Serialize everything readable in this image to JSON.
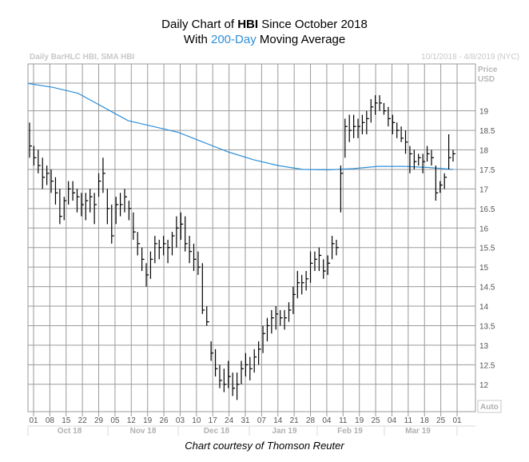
{
  "title": {
    "line1_prefix": "Daily Chart of ",
    "ticker": "HBI",
    "line1_suffix": " Since October 2018",
    "line2_prefix": "With ",
    "line2_highlight": "200-Day",
    "line2_suffix": " Moving Average"
  },
  "header_left": "Daily BarHLC HBI, SMA HBI",
  "header_right": "10/1/2018 - 4/8/2019 (NYC)",
  "price_label": [
    "Price",
    "USD"
  ],
  "auto_label": "Auto",
  "caption": "Chart courtesy of Thomson Reuter",
  "colors": {
    "sma": "#2f8fd8",
    "bars": "#000000",
    "grid": "#9a9a9a",
    "highlight": "#2f8fd8"
  },
  "chart_data": {
    "type": "bar",
    "subtype": "ohlc-hlc",
    "ylim": [
      11.3,
      20.2
    ],
    "y_ticks": [
      "12",
      "12.5",
      "13",
      "13.5",
      "14",
      "14.5",
      "15",
      "15.5",
      "16",
      "16.5",
      "17",
      "17.5",
      "18",
      "18.5",
      "19"
    ],
    "x_ticks": [
      "01",
      "08",
      "15",
      "22",
      "29",
      "05",
      "12",
      "19",
      "26",
      "03",
      "10",
      "17",
      "24",
      "31",
      "07",
      "14",
      "21",
      "28",
      "04",
      "11",
      "19",
      "25",
      "04",
      "11",
      "18",
      "25",
      "01"
    ],
    "months": [
      "Oct 18",
      "Nov 18",
      "Dec 18",
      "Jan 19",
      "Feb 19",
      "Mar 19"
    ],
    "grid": true,
    "series": [
      {
        "name": "HBI",
        "bars": [
          {
            "h": 18.7,
            "l": 17.8,
            "c": 18.1
          },
          {
            "h": 18.1,
            "l": 17.6,
            "c": 17.8
          },
          {
            "h": 18.0,
            "l": 17.4,
            "c": 17.6
          },
          {
            "h": 17.8,
            "l": 17.0,
            "c": 17.3
          },
          {
            "h": 17.6,
            "l": 17.1,
            "c": 17.4
          },
          {
            "h": 17.5,
            "l": 16.9,
            "c": 17.2
          },
          {
            "h": 17.3,
            "l": 16.6,
            "c": 16.9
          },
          {
            "h": 17.0,
            "l": 16.1,
            "c": 16.3
          },
          {
            "h": 16.8,
            "l": 16.2,
            "c": 16.7
          },
          {
            "h": 17.2,
            "l": 16.6,
            "c": 17.0
          },
          {
            "h": 17.2,
            "l": 16.7,
            "c": 16.9
          },
          {
            "h": 17.0,
            "l": 16.4,
            "c": 16.8
          },
          {
            "h": 16.9,
            "l": 16.3,
            "c": 16.6
          },
          {
            "h": 16.9,
            "l": 16.2,
            "c": 16.7
          },
          {
            "h": 17.0,
            "l": 16.4,
            "c": 16.8
          },
          {
            "h": 16.9,
            "l": 16.1,
            "c": 16.6
          },
          {
            "h": 17.4,
            "l": 16.8,
            "c": 17.2
          },
          {
            "h": 17.8,
            "l": 16.9,
            "c": 17.4
          },
          {
            "h": 17.0,
            "l": 16.1,
            "c": 16.5
          },
          {
            "h": 16.6,
            "l": 15.6,
            "c": 15.8
          },
          {
            "h": 16.8,
            "l": 16.1,
            "c": 16.6
          },
          {
            "h": 16.9,
            "l": 16.3,
            "c": 16.6
          },
          {
            "h": 17.0,
            "l": 16.4,
            "c": 16.8
          },
          {
            "h": 16.7,
            "l": 16.2,
            "c": 16.5
          },
          {
            "h": 16.4,
            "l": 15.7,
            "c": 15.9
          },
          {
            "h": 15.9,
            "l": 15.3,
            "c": 15.6
          },
          {
            "h": 15.5,
            "l": 14.9,
            "c": 15.2
          },
          {
            "h": 15.1,
            "l": 14.5,
            "c": 14.8
          },
          {
            "h": 15.4,
            "l": 14.7,
            "c": 15.2
          },
          {
            "h": 15.8,
            "l": 15.1,
            "c": 15.6
          },
          {
            "h": 15.7,
            "l": 15.2,
            "c": 15.5
          },
          {
            "h": 15.8,
            "l": 15.3,
            "c": 15.6
          },
          {
            "h": 15.7,
            "l": 15.1,
            "c": 15.5
          },
          {
            "h": 15.9,
            "l": 15.3,
            "c": 15.8
          },
          {
            "h": 16.3,
            "l": 15.5,
            "c": 16.0
          },
          {
            "h": 16.4,
            "l": 15.7,
            "c": 16.1
          },
          {
            "h": 16.3,
            "l": 15.4,
            "c": 15.6
          },
          {
            "h": 15.8,
            "l": 15.1,
            "c": 15.4
          },
          {
            "h": 15.6,
            "l": 14.9,
            "c": 15.2
          },
          {
            "h": 15.4,
            "l": 14.8,
            "c": 15.0
          },
          {
            "h": 15.1,
            "l": 13.8,
            "c": 13.9
          },
          {
            "h": 14.0,
            "l": 13.5,
            "c": 13.6
          },
          {
            "h": 13.1,
            "l": 12.6,
            "c": 12.8
          },
          {
            "h": 12.9,
            "l": 12.2,
            "c": 12.4
          },
          {
            "h": 12.5,
            "l": 11.9,
            "c": 12.1
          },
          {
            "h": 12.4,
            "l": 11.8,
            "c": 12.0
          },
          {
            "h": 12.6,
            "l": 11.9,
            "c": 12.2
          },
          {
            "h": 12.3,
            "l": 11.7,
            "c": 11.9
          },
          {
            "h": 12.3,
            "l": 11.6,
            "c": 12.0
          },
          {
            "h": 12.6,
            "l": 12.0,
            "c": 12.4
          },
          {
            "h": 12.8,
            "l": 12.2,
            "c": 12.5
          },
          {
            "h": 12.7,
            "l": 12.1,
            "c": 12.4
          },
          {
            "h": 12.9,
            "l": 12.3,
            "c": 12.7
          },
          {
            "h": 13.1,
            "l": 12.5,
            "c": 12.9
          },
          {
            "h": 13.5,
            "l": 12.8,
            "c": 13.3
          },
          {
            "h": 13.7,
            "l": 13.1,
            "c": 13.5
          },
          {
            "h": 13.9,
            "l": 13.3,
            "c": 13.7
          },
          {
            "h": 14.0,
            "l": 13.4,
            "c": 13.8
          },
          {
            "h": 13.9,
            "l": 13.5,
            "c": 13.7
          },
          {
            "h": 13.9,
            "l": 13.4,
            "c": 13.7
          },
          {
            "h": 14.1,
            "l": 13.6,
            "c": 13.9
          },
          {
            "h": 14.5,
            "l": 13.8,
            "c": 14.3
          },
          {
            "h": 14.9,
            "l": 14.2,
            "c": 14.6
          },
          {
            "h": 14.8,
            "l": 14.3,
            "c": 14.6
          },
          {
            "h": 14.9,
            "l": 14.4,
            "c": 14.7
          },
          {
            "h": 15.4,
            "l": 14.6,
            "c": 15.1
          },
          {
            "h": 15.4,
            "l": 14.9,
            "c": 15.2
          },
          {
            "h": 15.5,
            "l": 14.9,
            "c": 15.3
          },
          {
            "h": 15.2,
            "l": 14.7,
            "c": 14.9
          },
          {
            "h": 15.3,
            "l": 14.8,
            "c": 15.1
          },
          {
            "h": 15.8,
            "l": 15.2,
            "c": 15.6
          },
          {
            "h": 15.7,
            "l": 15.3,
            "c": 15.5
          },
          {
            "h": 17.6,
            "l": 16.4,
            "c": 17.4
          },
          {
            "h": 18.8,
            "l": 17.8,
            "c": 18.6
          },
          {
            "h": 18.9,
            "l": 18.2,
            "c": 18.5
          },
          {
            "h": 18.9,
            "l": 18.3,
            "c": 18.6
          },
          {
            "h": 18.8,
            "l": 18.3,
            "c": 18.6
          },
          {
            "h": 18.9,
            "l": 18.4,
            "c": 18.7
          },
          {
            "h": 19.0,
            "l": 18.4,
            "c": 18.8
          },
          {
            "h": 19.3,
            "l": 18.7,
            "c": 19.1
          },
          {
            "h": 19.4,
            "l": 18.9,
            "c": 19.2
          },
          {
            "h": 19.4,
            "l": 19.0,
            "c": 19.2
          },
          {
            "h": 19.2,
            "l": 18.9,
            "c": 19.0
          },
          {
            "h": 19.1,
            "l": 18.6,
            "c": 18.8
          },
          {
            "h": 18.9,
            "l": 18.4,
            "c": 18.7
          },
          {
            "h": 18.7,
            "l": 18.3,
            "c": 18.5
          },
          {
            "h": 18.6,
            "l": 18.2,
            "c": 18.3
          },
          {
            "h": 18.5,
            "l": 17.9,
            "c": 18.2
          },
          {
            "h": 18.1,
            "l": 17.4,
            "c": 17.9
          },
          {
            "h": 18.0,
            "l": 17.5,
            "c": 17.7
          },
          {
            "h": 17.9,
            "l": 17.6,
            "c": 17.8
          },
          {
            "h": 17.9,
            "l": 17.4,
            "c": 17.7
          },
          {
            "h": 18.1,
            "l": 17.7,
            "c": 17.9
          },
          {
            "h": 18.0,
            "l": 17.6,
            "c": 17.8
          },
          {
            "h": 17.6,
            "l": 16.7,
            "c": 16.9
          },
          {
            "h": 17.2,
            "l": 16.9,
            "c": 17.1
          },
          {
            "h": 17.4,
            "l": 17.0,
            "c": 17.3
          },
          {
            "h": 18.4,
            "l": 17.5,
            "c": 17.8
          },
          {
            "h": 18.0,
            "l": 17.7,
            "c": 17.9
          }
        ]
      },
      {
        "name": "SMA",
        "values": [
          19.7,
          19.6,
          19.45,
          19.1,
          18.75,
          18.6,
          18.45,
          18.2,
          17.95,
          17.75,
          17.6,
          17.5,
          17.49,
          17.52,
          17.58,
          17.58,
          17.55,
          17.5
        ]
      }
    ]
  }
}
